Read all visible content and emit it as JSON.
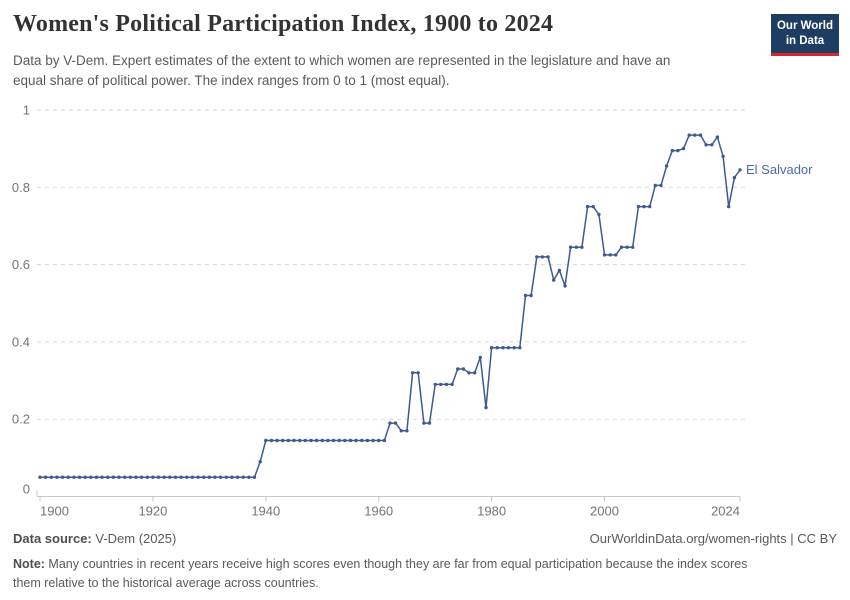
{
  "header": {
    "title": "Women's Political Participation Index, 1900 to 2024",
    "subtitle": "Data by V-Dem. Expert estimates of the extent to which women are represented in the legislature and have an equal share of political power. The index ranges from 0 to 1 (most equal).",
    "logo": {
      "line1": "Our World",
      "line2": "in Data"
    }
  },
  "chart_data": {
    "type": "line",
    "title": "Women's Political Participation Index, 1900 to 2024",
    "xlabel": "",
    "ylabel": "",
    "xlim": [
      1900,
      2024
    ],
    "ylim": [
      0,
      1
    ],
    "x_ticks": [
      1900,
      1920,
      1940,
      1960,
      1980,
      2000,
      2024
    ],
    "y_ticks": [
      0,
      0.2,
      0.4,
      0.6,
      0.8,
      1
    ],
    "grid": "dashed-horizontal",
    "legend_position": "end-of-line-label",
    "entity_label": "El Salvador",
    "series": [
      {
        "name": "El Salvador",
        "points": [
          [
            1900,
            0.05
          ],
          [
            1901,
            0.05
          ],
          [
            1902,
            0.05
          ],
          [
            1903,
            0.05
          ],
          [
            1904,
            0.05
          ],
          [
            1905,
            0.05
          ],
          [
            1906,
            0.05
          ],
          [
            1907,
            0.05
          ],
          [
            1908,
            0.05
          ],
          [
            1909,
            0.05
          ],
          [
            1910,
            0.05
          ],
          [
            1911,
            0.05
          ],
          [
            1912,
            0.05
          ],
          [
            1913,
            0.05
          ],
          [
            1914,
            0.05
          ],
          [
            1915,
            0.05
          ],
          [
            1916,
            0.05
          ],
          [
            1917,
            0.05
          ],
          [
            1918,
            0.05
          ],
          [
            1919,
            0.05
          ],
          [
            1920,
            0.05
          ],
          [
            1921,
            0.05
          ],
          [
            1922,
            0.05
          ],
          [
            1923,
            0.05
          ],
          [
            1924,
            0.05
          ],
          [
            1925,
            0.05
          ],
          [
            1926,
            0.05
          ],
          [
            1927,
            0.05
          ],
          [
            1928,
            0.05
          ],
          [
            1929,
            0.05
          ],
          [
            1930,
            0.05
          ],
          [
            1931,
            0.05
          ],
          [
            1932,
            0.05
          ],
          [
            1933,
            0.05
          ],
          [
            1934,
            0.05
          ],
          [
            1935,
            0.05
          ],
          [
            1936,
            0.05
          ],
          [
            1937,
            0.05
          ],
          [
            1938,
            0.05
          ],
          [
            1939,
            0.09
          ],
          [
            1940,
            0.145
          ],
          [
            1941,
            0.145
          ],
          [
            1942,
            0.145
          ],
          [
            1943,
            0.145
          ],
          [
            1944,
            0.145
          ],
          [
            1945,
            0.145
          ],
          [
            1946,
            0.145
          ],
          [
            1947,
            0.145
          ],
          [
            1948,
            0.145
          ],
          [
            1949,
            0.145
          ],
          [
            1950,
            0.145
          ],
          [
            1951,
            0.145
          ],
          [
            1952,
            0.145
          ],
          [
            1953,
            0.145
          ],
          [
            1954,
            0.145
          ],
          [
            1955,
            0.145
          ],
          [
            1956,
            0.145
          ],
          [
            1957,
            0.145
          ],
          [
            1958,
            0.145
          ],
          [
            1959,
            0.145
          ],
          [
            1960,
            0.145
          ],
          [
            1961,
            0.145
          ],
          [
            1962,
            0.19
          ],
          [
            1963,
            0.19
          ],
          [
            1964,
            0.17
          ],
          [
            1965,
            0.17
          ],
          [
            1966,
            0.32
          ],
          [
            1967,
            0.32
          ],
          [
            1968,
            0.19
          ],
          [
            1969,
            0.19
          ],
          [
            1970,
            0.29
          ],
          [
            1971,
            0.29
          ],
          [
            1972,
            0.29
          ],
          [
            1973,
            0.29
          ],
          [
            1974,
            0.33
          ],
          [
            1975,
            0.33
          ],
          [
            1976,
            0.32
          ],
          [
            1977,
            0.32
          ],
          [
            1978,
            0.36
          ],
          [
            1979,
            0.23
          ],
          [
            1980,
            0.385
          ],
          [
            1981,
            0.385
          ],
          [
            1982,
            0.385
          ],
          [
            1983,
            0.385
          ],
          [
            1984,
            0.385
          ],
          [
            1985,
            0.385
          ],
          [
            1986,
            0.52
          ],
          [
            1987,
            0.52
          ],
          [
            1988,
            0.62
          ],
          [
            1989,
            0.62
          ],
          [
            1990,
            0.62
          ],
          [
            1991,
            0.56
          ],
          [
            1992,
            0.585
          ],
          [
            1993,
            0.545
          ],
          [
            1994,
            0.645
          ],
          [
            1995,
            0.645
          ],
          [
            1996,
            0.645
          ],
          [
            1997,
            0.75
          ],
          [
            1998,
            0.75
          ],
          [
            1999,
            0.73
          ],
          [
            2000,
            0.625
          ],
          [
            2001,
            0.625
          ],
          [
            2002,
            0.625
          ],
          [
            2003,
            0.645
          ],
          [
            2004,
            0.645
          ],
          [
            2005,
            0.645
          ],
          [
            2006,
            0.75
          ],
          [
            2007,
            0.75
          ],
          [
            2008,
            0.75
          ],
          [
            2009,
            0.805
          ],
          [
            2010,
            0.805
          ],
          [
            2011,
            0.855
          ],
          [
            2012,
            0.895
          ],
          [
            2013,
            0.895
          ],
          [
            2014,
            0.9
          ],
          [
            2015,
            0.935
          ],
          [
            2016,
            0.935
          ],
          [
            2017,
            0.935
          ],
          [
            2018,
            0.91
          ],
          [
            2019,
            0.91
          ],
          [
            2020,
            0.93
          ],
          [
            2021,
            0.88
          ],
          [
            2022,
            0.75
          ],
          [
            2023,
            0.825
          ],
          [
            2024,
            0.845
          ]
        ]
      }
    ]
  },
  "footer": {
    "source_label": "Data source:",
    "source_text": " V-Dem (2025)",
    "link_text": "OurWorldinData.org/women-rights | CC BY",
    "note_label": "Note:",
    "note_text": " Many countries in recent years receive high scores even though they are far from equal participation because the index scores them relative to the historical average across countries."
  },
  "colors": {
    "line": "#3d5a93",
    "entity_label": "#4a6bab",
    "grid": "#d8d8d8",
    "axis": "#c8c8c8",
    "tick_text": "#757575",
    "title_text": "#333333",
    "body_text": "#5a5a5a",
    "logo_bg": "#1d3d63",
    "logo_red": "#d7282e"
  }
}
